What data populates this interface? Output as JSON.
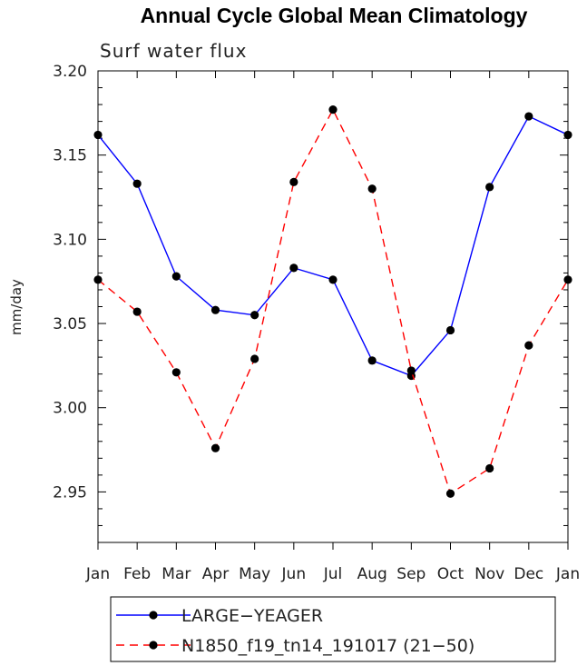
{
  "chart_data": {
    "type": "line",
    "title": "Annual Cycle Global Mean Climatology",
    "subtitle": "Surf water flux",
    "xlabel": "",
    "ylabel": "mm/day",
    "categories": [
      "Jan",
      "Feb",
      "Mar",
      "Apr",
      "May",
      "Jun",
      "Jul",
      "Aug",
      "Sep",
      "Oct",
      "Nov",
      "Dec",
      "Jan"
    ],
    "ylim": [
      2.92,
      3.2
    ],
    "yticks": [
      "3.20",
      "3.15",
      "3.10",
      "3.05",
      "3.00",
      "2.95"
    ],
    "series": [
      {
        "name": "LARGE−YEAGER",
        "color": "#0000ff",
        "dash": "solid",
        "values": [
          3.162,
          3.133,
          3.078,
          3.058,
          3.055,
          3.083,
          3.076,
          3.028,
          3.019,
          3.046,
          3.131,
          3.173,
          3.162
        ]
      },
      {
        "name": "N1850_f19_tn14_191017 (21−50)",
        "color": "#ff0000",
        "dash": "dashed",
        "values": [
          3.076,
          3.057,
          3.021,
          2.976,
          3.029,
          3.134,
          3.177,
          3.13,
          3.022,
          2.949,
          2.964,
          3.037,
          3.076
        ]
      }
    ]
  }
}
